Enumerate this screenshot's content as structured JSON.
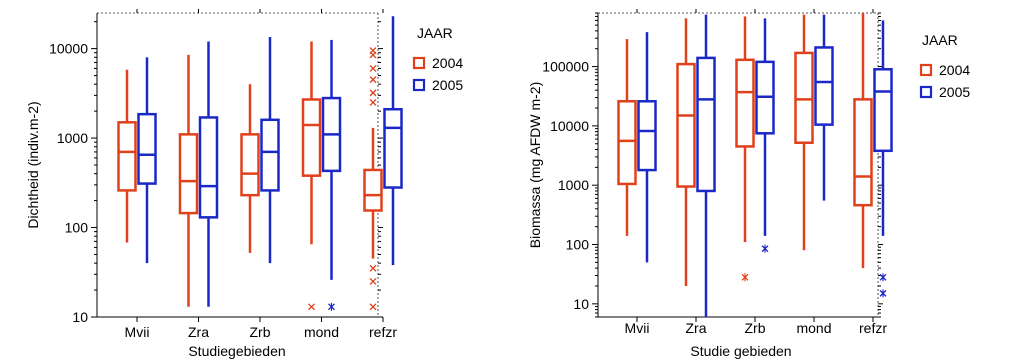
{
  "chart_data": [
    {
      "type": "box",
      "ylabel": "Dichtheid (indiv.m-2)",
      "xlabel": "Studiegebieden",
      "yscale": "log",
      "ylim": [
        10,
        25000
      ],
      "y_tick_labels": [
        "10",
        "100",
        "1000",
        "10000"
      ],
      "y_tick_values": [
        10,
        100,
        1000,
        10000
      ],
      "categories": [
        "Mvii",
        "Zra",
        "Zrb",
        "mond",
        "refzr"
      ],
      "legend_title": "JAAR",
      "legend_position": "right",
      "series": [
        {
          "name": "2004",
          "color": "#e0401a",
          "boxes": [
            {
              "whisker_low": 68,
              "q1": 260,
              "median": 700,
              "q3": 1500,
              "whisker_high": 5800,
              "outliers": []
            },
            {
              "whisker_low": 13,
              "q1": 145,
              "median": 330,
              "q3": 1100,
              "whisker_high": 8500,
              "outliers": []
            },
            {
              "whisker_low": 52,
              "q1": 230,
              "median": 400,
              "q3": 1100,
              "whisker_high": 4000,
              "outliers": []
            },
            {
              "whisker_low": 65,
              "q1": 380,
              "median": 1400,
              "q3": 2700,
              "whisker_high": 12000,
              "outliers": [
                13
              ]
            },
            {
              "whisker_low": 45,
              "q1": 155,
              "median": 230,
              "q3": 440,
              "whisker_high": 1300,
              "outliers": [
                9500,
                8500,
                6000,
                4500,
                3200,
                2500,
                35,
                25,
                13
              ]
            }
          ]
        },
        {
          "name": "2005",
          "color": "#1a28c8",
          "boxes": [
            {
              "whisker_low": 40,
              "q1": 310,
              "median": 650,
              "q3": 1850,
              "whisker_high": 8000,
              "outliers": []
            },
            {
              "whisker_low": 13,
              "q1": 130,
              "median": 290,
              "q3": 1700,
              "whisker_high": 12000,
              "outliers": []
            },
            {
              "whisker_low": 40,
              "q1": 260,
              "median": 700,
              "q3": 1600,
              "whisker_high": 13500,
              "outliers": []
            },
            {
              "whisker_low": 26,
              "q1": 430,
              "median": 1100,
              "q3": 2800,
              "whisker_high": 12500,
              "outliers": [
                13
              ]
            },
            {
              "whisker_low": 38,
              "q1": 280,
              "median": 1300,
              "q3": 2100,
              "whisker_high": 23000,
              "outliers": []
            }
          ]
        }
      ]
    },
    {
      "type": "box",
      "ylabel": "Biomassa (mg AFDW m-2)",
      "xlabel": "Studie gebieden",
      "yscale": "log",
      "ylim": [
        6,
        800000
      ],
      "y_tick_labels": [
        "10",
        "100",
        "1000",
        "10000",
        "100000"
      ],
      "y_tick_values": [
        10,
        100,
        1000,
        10000,
        100000
      ],
      "categories": [
        "Mvii",
        "Zra",
        "Zrb",
        "mond",
        "refzr"
      ],
      "legend_title": "JAAR",
      "legend_position": "right",
      "series": [
        {
          "name": "2004",
          "color": "#e0401a",
          "boxes": [
            {
              "whisker_low": 140,
              "q1": 1050,
              "median": 5600,
              "q3": 26000,
              "whisker_high": 290000,
              "outliers": []
            },
            {
              "whisker_low": 20,
              "q1": 950,
              "median": 15000,
              "q3": 110000,
              "whisker_high": 650000,
              "outliers": []
            },
            {
              "whisker_low": 110,
              "q1": 4500,
              "median": 37000,
              "q3": 130000,
              "whisker_high": 700000,
              "outliers": [
                28
              ]
            },
            {
              "whisker_low": 80,
              "q1": 5200,
              "median": 28000,
              "q3": 170000,
              "whisker_high": 750000,
              "outliers": []
            },
            {
              "whisker_low": 40,
              "q1": 460,
              "median": 1400,
              "q3": 28000,
              "whisker_high": 800000,
              "outliers": []
            }
          ]
        },
        {
          "name": "2005",
          "color": "#1a28c8",
          "boxes": [
            {
              "whisker_low": 50,
              "q1": 1800,
              "median": 8200,
              "q3": 26000,
              "whisker_high": 380000,
              "outliers": []
            },
            {
              "whisker_low": 6,
              "q1": 800,
              "median": 28000,
              "q3": 140000,
              "whisker_high": 750000,
              "outliers": []
            },
            {
              "whisker_low": 140,
              "q1": 7500,
              "median": 31000,
              "q3": 120000,
              "whisker_high": 650000,
              "outliers": [
                85
              ]
            },
            {
              "whisker_low": 550,
              "q1": 10500,
              "median": 55000,
              "q3": 210000,
              "whisker_high": 750000,
              "outliers": []
            },
            {
              "whisker_low": 140,
              "q1": 3800,
              "median": 38000,
              "q3": 90000,
              "whisker_high": 600000,
              "outliers": [
                28,
                15
              ]
            }
          ]
        }
      ]
    }
  ]
}
